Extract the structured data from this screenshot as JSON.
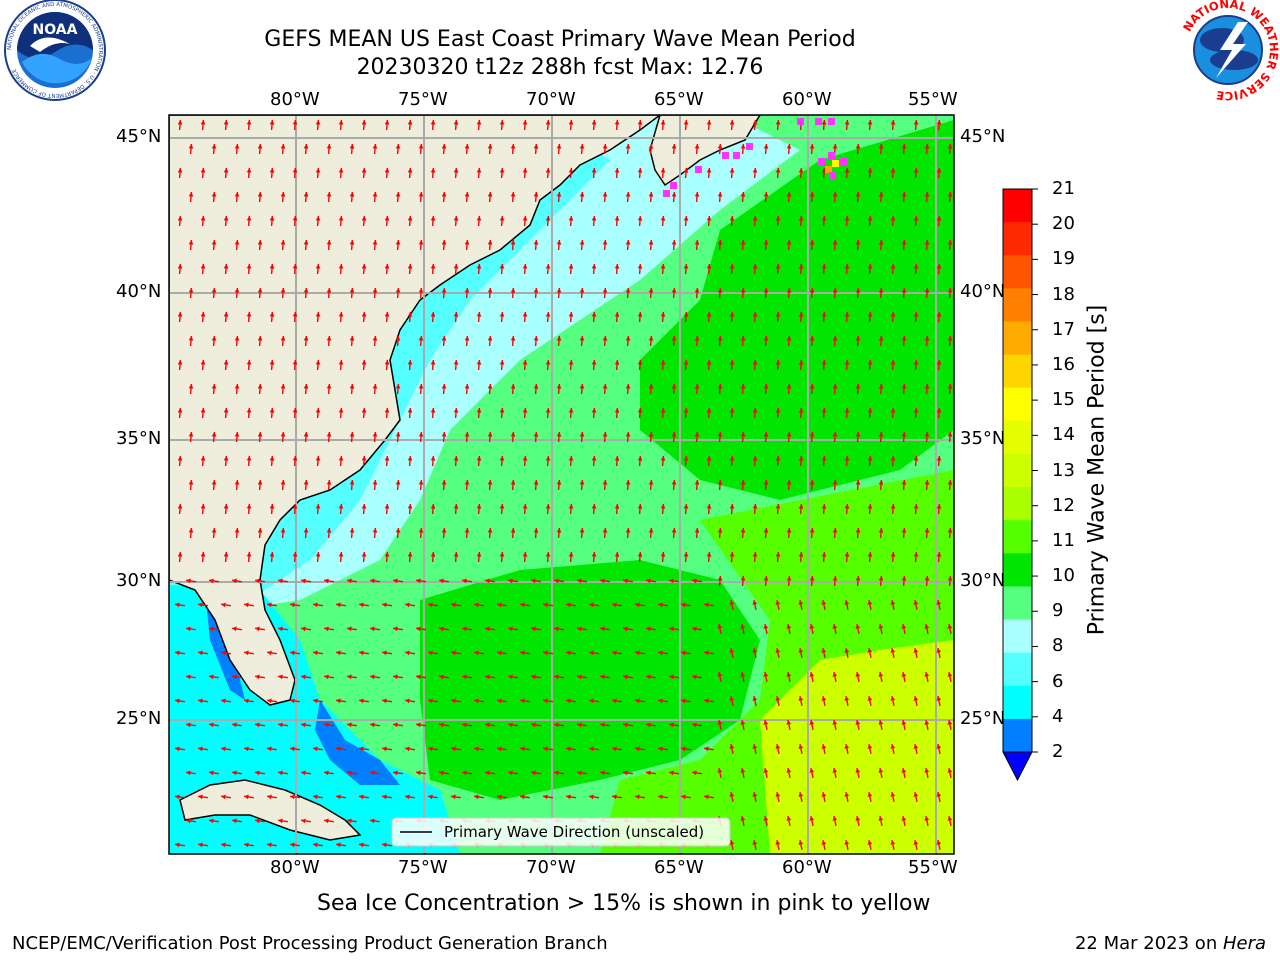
{
  "title_line1": "GEFS MEAN US East Coast Primary Wave Mean Period",
  "title_line2": "20230320 t12z 288h fcst   Max: 12.76",
  "lon_labels": [
    "80°W",
    "75°W",
    "70°W",
    "65°W",
    "60°W",
    "55°W"
  ],
  "lat_labels": [
    "45°N",
    "40°N",
    "35°N",
    "30°N",
    "25°N"
  ],
  "legend_label": "Primary Wave Direction (unscaled)",
  "colorbar": {
    "label": "Primary Wave Mean Period [s]",
    "ticks": [
      "21",
      "20",
      "19",
      "18",
      "17",
      "16",
      "15",
      "14",
      "13",
      "12",
      "11",
      "10",
      "9",
      "8",
      "6",
      "4",
      "2"
    ],
    "colors": [
      "#ff0000",
      "#ff2a00",
      "#ff5500",
      "#ff8000",
      "#ffaa00",
      "#ffd500",
      "#ffff00",
      "#e6ff00",
      "#ccff00",
      "#aaff00",
      "#55ff00",
      "#00e600",
      "#55ff80",
      "#aaffff",
      "#55ffff",
      "#00ffff",
      "#0080ff",
      "#0000ff"
    ]
  },
  "sea_ice_note": "Sea Ice Concentration > 15% is shown in pink to yellow",
  "footer_left": "NCEP/EMC/Verification Post Processing Product Generation Branch",
  "footer_date": "22 Mar 2023 on ",
  "footer_machine": "Hera",
  "logo_noaa": "NOAA",
  "logo_noaa_ring": "NATIONAL OCEANIC AND ATMOSPHERIC ADMINISTRATION · U.S. DEPARTMENT OF COMMERCE",
  "logo_nws_ring": "NATIONAL WEATHER SERVICE"
}
